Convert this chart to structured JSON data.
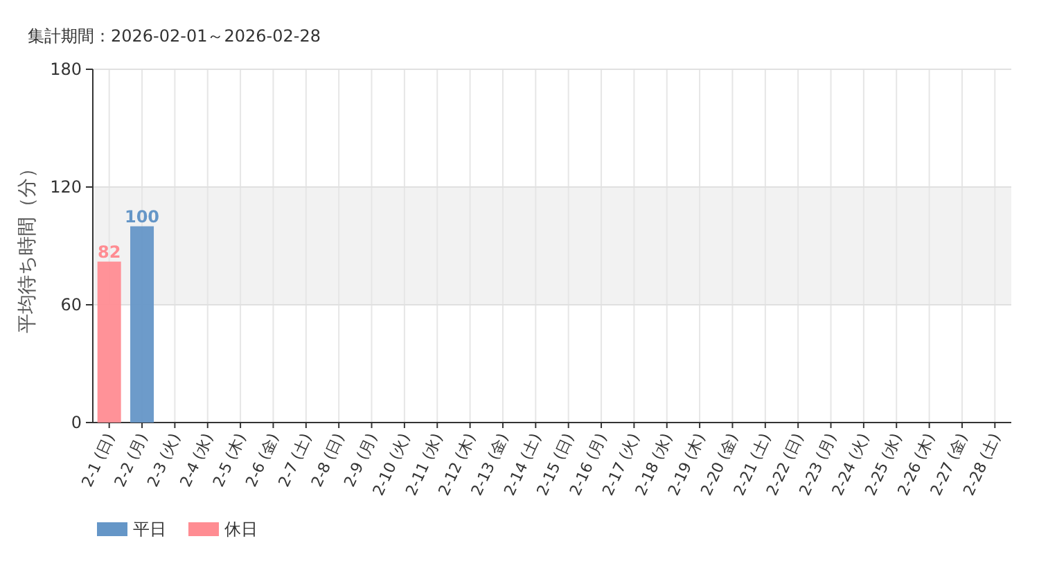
{
  "chart_data": {
    "type": "bar",
    "title": "集計期間：2026-02-01～2026-02-28",
    "ylabel": "平均待ち時間（分）",
    "categories": [
      "2-1 (日)",
      "2-2 (月)",
      "2-3 (火)",
      "2-4 (水)",
      "2-5 (木)",
      "2-6 (金)",
      "2-7 (土)",
      "2-8 (日)",
      "2-9 (月)",
      "2-10 (火)",
      "2-11 (水)",
      "2-12 (木)",
      "2-13 (金)",
      "2-14 (土)",
      "2-15 (日)",
      "2-16 (月)",
      "2-17 (火)",
      "2-18 (水)",
      "2-19 (木)",
      "2-20 (金)",
      "2-21 (土)",
      "2-22 (日)",
      "2-23 (月)",
      "2-24 (火)",
      "2-25 (水)",
      "2-26 (木)",
      "2-27 (金)",
      "2-28 (土)"
    ],
    "series": [
      {
        "name": "平日",
        "color": "#6596c7",
        "values": [
          null,
          100,
          null,
          null,
          null,
          null,
          null,
          null,
          null,
          null,
          null,
          null,
          null,
          null,
          null,
          null,
          null,
          null,
          null,
          null,
          null,
          null,
          null,
          null,
          null,
          null,
          null,
          null
        ]
      },
      {
        "name": "休日",
        "color": "#ff8c92",
        "values": [
          82,
          null,
          null,
          null,
          null,
          null,
          null,
          null,
          null,
          null,
          null,
          null,
          null,
          null,
          null,
          null,
          null,
          null,
          null,
          null,
          null,
          null,
          null,
          null,
          null,
          null,
          null,
          null
        ]
      }
    ],
    "ylim": [
      0,
      180
    ],
    "yticks": [
      0,
      60,
      120,
      180
    ],
    "grid": true,
    "legend": "bottom left",
    "data_labels": true,
    "bands": [
      {
        "axis": "y",
        "from": 60,
        "to": 120,
        "color": "#f2f2f2"
      }
    ]
  }
}
